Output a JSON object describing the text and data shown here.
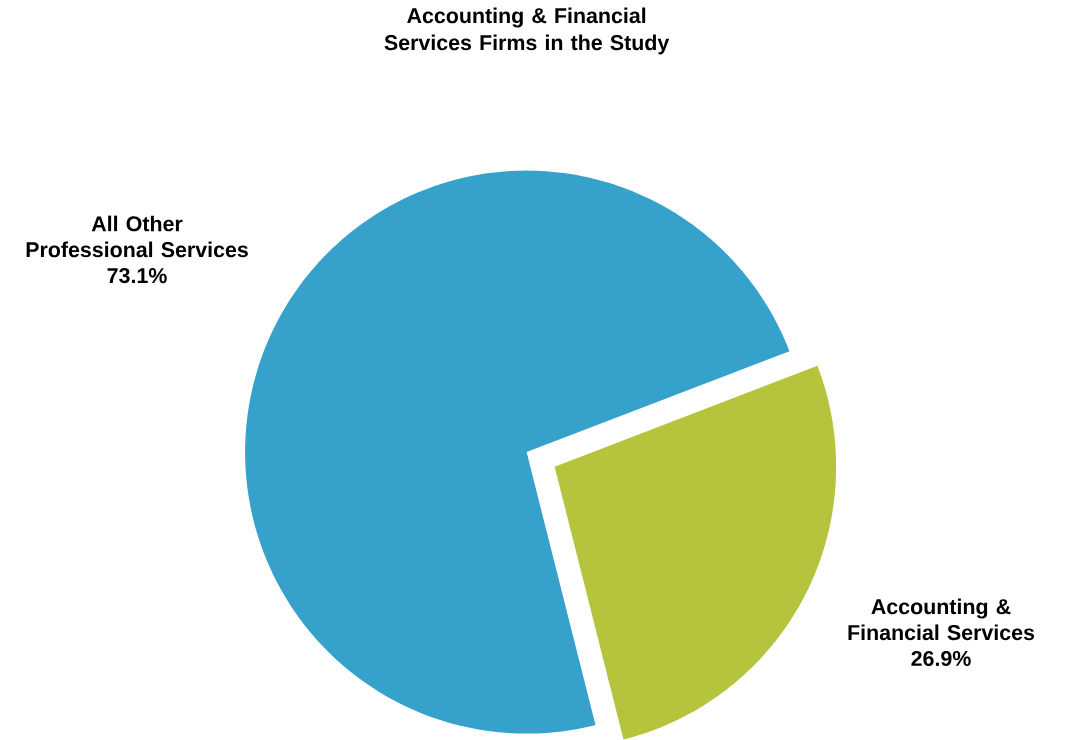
{
  "chart_data": {
    "type": "pie",
    "title": "Accounting & Financial Services Firms in the Study",
    "categories": [
      "All Other Professional Services",
      "Accounting & Financial Services"
    ],
    "values": [
      73.1,
      26.9
    ],
    "colors": [
      "#36a1cb",
      "#b6c43d"
    ],
    "value_labels": [
      "73.1%",
      "26.9%"
    ]
  }
}
